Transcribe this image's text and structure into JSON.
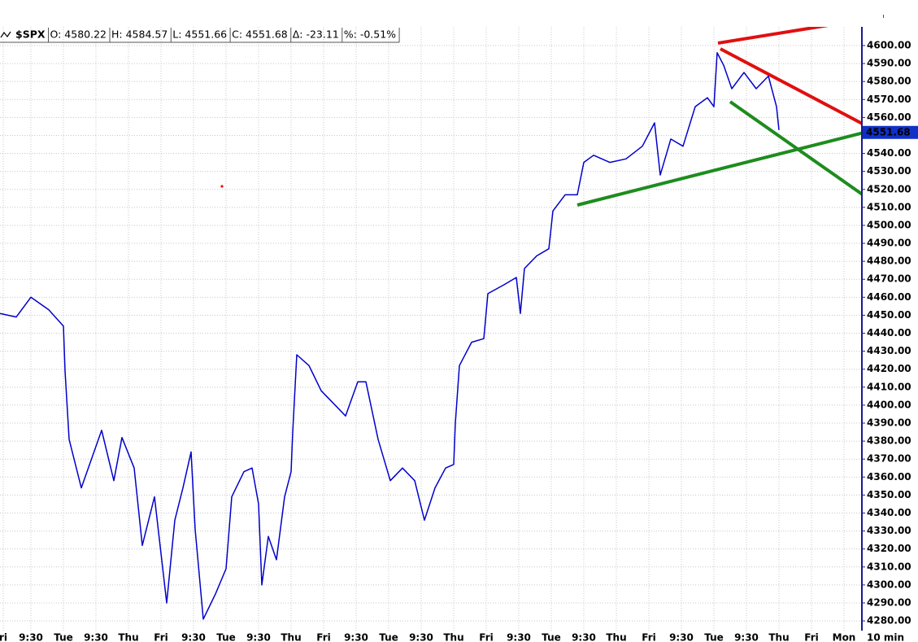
{
  "chart_data": {
    "type": "line",
    "symbol": "$SPX",
    "header": [
      "O: 4580.22",
      "H: 4584.57",
      "L: 4551.66",
      "C: 4551.68",
      "Δ: -23.11",
      "%: -0.51%"
    ],
    "x_axis_label": "10 min",
    "last_price": 4551.68,
    "xlim": [
      0,
      530
    ],
    "ylim": [
      4274.6,
      4610.4
    ],
    "grid": true,
    "xticks": [
      {
        "value": 2,
        "label": "ri"
      },
      {
        "value": 19,
        "label": "9:30"
      },
      {
        "value": 39,
        "label": "Tue"
      },
      {
        "value": 59,
        "label": "9:30"
      },
      {
        "value": 79,
        "label": "Thu"
      },
      {
        "value": 99,
        "label": "Fri"
      },
      {
        "value": 119,
        "label": "9:30"
      },
      {
        "value": 139,
        "label": "Tue"
      },
      {
        "value": 159,
        "label": "9:30"
      },
      {
        "value": 179,
        "label": "Thu"
      },
      {
        "value": 199,
        "label": "Fri"
      },
      {
        "value": 219,
        "label": "9:30"
      },
      {
        "value": 239,
        "label": "Tue"
      },
      {
        "value": 259,
        "label": "9:30"
      },
      {
        "value": 279,
        "label": "Thu"
      },
      {
        "value": 299,
        "label": "Fri"
      },
      {
        "value": 319,
        "label": "9:30"
      },
      {
        "value": 339,
        "label": "Tue"
      },
      {
        "value": 359,
        "label": "9:30"
      },
      {
        "value": 379,
        "label": "Thu"
      },
      {
        "value": 399,
        "label": "Fri"
      },
      {
        "value": 419,
        "label": "9:30"
      },
      {
        "value": 439,
        "label": "Tue"
      },
      {
        "value": 459,
        "label": "9:30"
      },
      {
        "value": 479,
        "label": "Thu"
      },
      {
        "value": 499,
        "label": "Fri"
      },
      {
        "value": 519,
        "label": "Mon"
      }
    ],
    "yticks": [
      {
        "value": 4280,
        "label": "4280.00"
      },
      {
        "value": 4290,
        "label": "4290.00"
      },
      {
        "value": 4300,
        "label": "4300.00"
      },
      {
        "value": 4310,
        "label": "4310.00"
      },
      {
        "value": 4320,
        "label": "4320.00"
      },
      {
        "value": 4330,
        "label": "4330.00"
      },
      {
        "value": 4340,
        "label": "4340.00"
      },
      {
        "value": 4350,
        "label": "4350.00"
      },
      {
        "value": 4360,
        "label": "4360.00"
      },
      {
        "value": 4370,
        "label": "4370.00"
      },
      {
        "value": 4380,
        "label": "4380.00"
      },
      {
        "value": 4390,
        "label": "4390.00"
      },
      {
        "value": 4400,
        "label": "4400.00"
      },
      {
        "value": 4410,
        "label": "4410.00"
      },
      {
        "value": 4420,
        "label": "4420.00"
      },
      {
        "value": 4430,
        "label": "4430.00"
      },
      {
        "value": 4440,
        "label": "4440.00"
      },
      {
        "value": 4450,
        "label": "4450.00"
      },
      {
        "value": 4460,
        "label": "4460.00"
      },
      {
        "value": 4470,
        "label": "4470.00"
      },
      {
        "value": 4480,
        "label": "4480.00"
      },
      {
        "value": 4490,
        "label": "4490.00"
      },
      {
        "value": 4500,
        "label": "4500.00"
      },
      {
        "value": 4510,
        "label": "4510.00"
      },
      {
        "value": 4520,
        "label": "4520.00"
      },
      {
        "value": 4530,
        "label": "4530.00"
      },
      {
        "value": 4540,
        "label": "4540.00"
      },
      {
        "value": 4550,
        "label": "4550.00"
      },
      {
        "value": 4560,
        "label": "4560.00"
      },
      {
        "value": 4570,
        "label": "4570.00"
      },
      {
        "value": 4580,
        "label": "4580.00"
      },
      {
        "value": 4590,
        "label": "4590.00"
      },
      {
        "value": 4600,
        "label": "4600.00"
      }
    ],
    "series": [
      {
        "color": "#0000cc",
        "x": [
          0,
          10,
          19,
          30,
          39,
          40,
          42.5,
          50,
          62.5,
          70,
          75,
          82.5,
          87.5,
          95,
          102.5,
          107.5,
          112.5,
          117.5,
          120,
          125,
          132.5,
          139,
          142.5,
          150,
          155,
          159,
          161,
          165,
          170,
          175,
          179,
          180,
          182.5,
          190,
          197.5,
          205,
          212.5,
          220,
          225,
          232.5,
          240,
          247.5,
          255,
          261,
          267.5,
          274,
          279,
          280,
          282.5,
          290,
          297.5,
          300,
          310,
          317.5,
          320,
          322.5,
          330,
          337.5,
          340,
          347.5,
          355,
          359,
          365,
          375,
          385,
          395,
          402.5,
          406,
          412.5,
          420,
          427.5,
          435,
          439,
          441,
          445,
          450,
          457.5,
          465,
          472.5,
          477.5,
          479
        ],
        "values": [
          4451,
          4449,
          4460,
          4453,
          4444,
          4419,
          4381,
          4354,
          4386,
          4358,
          4382,
          4365,
          4322,
          4349,
          4290,
          4336,
          4354,
          4374,
          4331,
          4281,
          4295,
          4309,
          4349,
          4363,
          4365,
          4345,
          4300,
          4327,
          4314,
          4349,
          4363,
          4385,
          4428,
          4422,
          4408,
          4401,
          4394,
          4413,
          4413,
          4381,
          4358,
          4365,
          4358,
          4336,
          4354,
          4365,
          4367,
          4390,
          4422,
          4435,
          4437,
          4462,
          4467,
          4471,
          4451,
          4476,
          4483,
          4487,
          4508,
          4517,
          4517,
          4535,
          4539,
          4535,
          4537,
          4544,
          4557,
          4528,
          4548,
          4544,
          4566,
          4571,
          4566,
          4596,
          4589,
          4576,
          4585,
          4576,
          4583,
          4566,
          4553
        ]
      }
    ]
  }
}
